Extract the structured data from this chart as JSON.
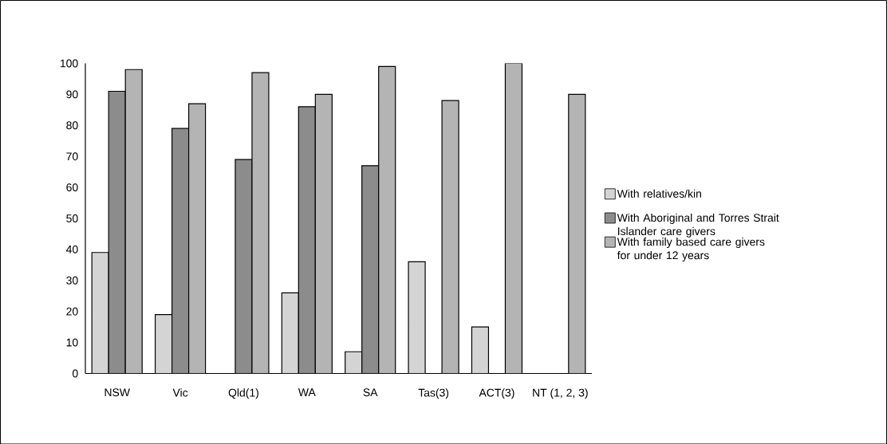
{
  "chart_data": {
    "type": "bar",
    "categories": [
      "NSW",
      "Vic",
      "Qld(1)",
      "WA",
      "SA",
      "Tas(3)",
      "ACT(3)",
      "NT (1, 2, 3)"
    ],
    "series": [
      {
        "name": "With relatives/kin",
        "color": "#d4d4d4",
        "values": [
          39,
          19,
          null,
          26,
          7,
          36,
          15,
          null
        ]
      },
      {
        "name": "With Aboriginal and Torres Strait Islander care givers",
        "color": "#8c8c8c",
        "values": [
          91,
          79,
          69,
          86,
          67,
          null,
          null,
          null
        ]
      },
      {
        "name": "With family based care givers for under 12 years",
        "color": "#b4b4b4",
        "values": [
          98,
          87,
          97,
          90,
          99,
          88,
          100,
          90
        ]
      }
    ],
    "ylim": [
      0,
      100
    ],
    "yticks": [
      0,
      10,
      20,
      30,
      40,
      50,
      60,
      70,
      80,
      90,
      100
    ],
    "grid": false,
    "legend": "right"
  }
}
